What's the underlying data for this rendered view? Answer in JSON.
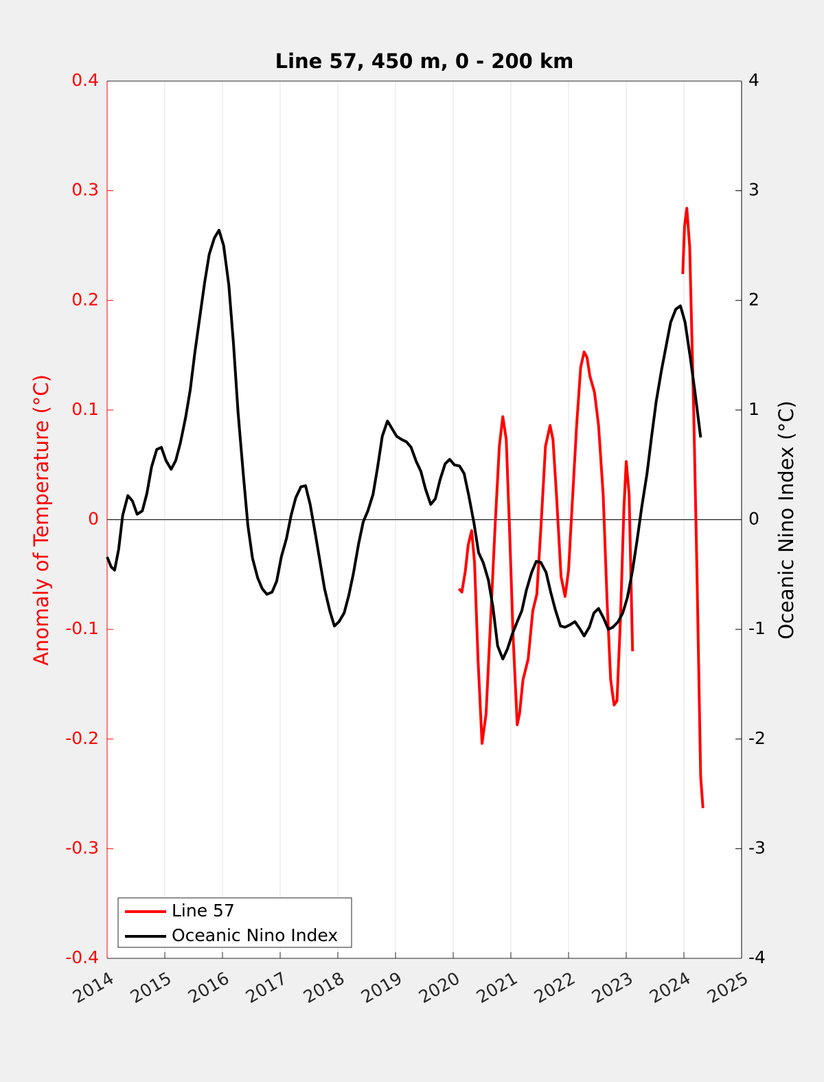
{
  "chart_data": {
    "type": "line",
    "title": "Line 57, 450 m, 0 - 200 km",
    "y_label": "Anomaly of Temperature (°C)",
    "y2_label": "Oceanic Nino Index (°C)",
    "xlim": [
      2014,
      2025
    ],
    "xticks": [
      2014,
      2015,
      2016,
      2017,
      2018,
      2019,
      2020,
      2021,
      2022,
      2023,
      2024,
      2025
    ],
    "ylim": [
      -0.4,
      0.4
    ],
    "yticks": [
      -0.4,
      -0.3,
      -0.2,
      -0.1,
      0,
      0.1,
      0.2,
      0.3,
      0.4
    ],
    "y2lim": [
      -4,
      4
    ],
    "y2ticks": [
      -4,
      -3,
      -2,
      -1,
      0,
      1,
      2,
      3,
      4
    ],
    "grid": "x",
    "legend": "lower left",
    "series": [
      {
        "name": "Line 57",
        "color": "#ff0000",
        "x": [
          2020.1,
          2020.15,
          2020.21,
          2020.26,
          2020.32,
          2020.37,
          2020.43,
          2020.5,
          2020.57,
          2020.65,
          2020.73,
          2020.8,
          2020.86,
          2020.92,
          2020.98,
          2021.04,
          2021.11,
          2021.15,
          2021.21,
          2021.3,
          2021.38,
          2021.45,
          2021.52,
          2021.6,
          2021.68,
          2021.73,
          2021.79,
          2021.87,
          2021.94,
          2022.0,
          2022.06,
          2022.14,
          2022.21,
          2022.27,
          2022.32,
          2022.37,
          2022.45,
          2022.52,
          2022.6,
          2022.67,
          2022.73,
          2022.79,
          2022.84,
          2022.9,
          2022.96,
          2023.0,
          2023.05,
          2023.11,
          null,
          2023.98,
          2024.01,
          2024.05,
          2024.1,
          2024.17,
          2024.23,
          2024.29,
          2024.33
        ],
        "values": [
          -0.063,
          -0.066,
          -0.047,
          -0.023,
          -0.01,
          -0.039,
          -0.127,
          -0.204,
          -0.177,
          -0.09,
          -0.002,
          0.067,
          0.094,
          0.073,
          -0.014,
          -0.108,
          -0.187,
          -0.177,
          -0.146,
          -0.127,
          -0.083,
          -0.068,
          -0.008,
          0.067,
          0.086,
          0.073,
          0.023,
          -0.052,
          -0.07,
          -0.046,
          0.011,
          0.086,
          0.139,
          0.153,
          0.148,
          0.131,
          0.116,
          0.086,
          0.023,
          -0.077,
          -0.146,
          -0.169,
          -0.165,
          -0.09,
          0.011,
          0.053,
          0.023,
          -0.12,
          null,
          0.224,
          0.267,
          0.284,
          0.249,
          0.098,
          -0.058,
          -0.234,
          -0.263
        ]
      },
      {
        "name": "Oceanic Nino Index",
        "color": "#000000",
        "axis": "y2",
        "x": [
          2014.0,
          2014.07,
          2014.13,
          2014.2,
          2014.27,
          2014.36,
          2014.44,
          2014.52,
          2014.61,
          2014.69,
          2014.77,
          2014.86,
          2014.94,
          2015.02,
          2015.11,
          2015.19,
          2015.27,
          2015.36,
          2015.44,
          2015.52,
          2015.61,
          2015.69,
          2015.77,
          2015.86,
          2015.94,
          2016.02,
          2016.11,
          2016.19,
          2016.27,
          2016.36,
          2016.44,
          2016.52,
          2016.61,
          2016.69,
          2016.77,
          2016.86,
          2016.94,
          2017.02,
          2017.11,
          2017.19,
          2017.27,
          2017.36,
          2017.44,
          2017.52,
          2017.61,
          2017.69,
          2017.77,
          2017.86,
          2017.94,
          2018.02,
          2018.11,
          2018.19,
          2018.27,
          2018.36,
          2018.44,
          2018.52,
          2018.61,
          2018.69,
          2018.77,
          2018.86,
          2018.94,
          2019.02,
          2019.11,
          2019.19,
          2019.27,
          2019.36,
          2019.44,
          2019.52,
          2019.61,
          2019.69,
          2019.77,
          2019.86,
          2019.94,
          2020.02,
          2020.11,
          2020.19,
          2020.27,
          2020.36,
          2020.44,
          2020.52,
          2020.61,
          2020.69,
          2020.77,
          2020.86,
          2020.94,
          2021.02,
          2021.11,
          2021.19,
          2021.27,
          2021.36,
          2021.44,
          2021.52,
          2021.61,
          2021.69,
          2021.77,
          2021.86,
          2021.94,
          2022.02,
          2022.11,
          2022.19,
          2022.27,
          2022.36,
          2022.44,
          2022.52,
          2022.61,
          2022.69,
          2022.77,
          2022.86,
          2022.94,
          2023.02,
          2023.11,
          2023.19,
          2023.27,
          2023.36,
          2023.44,
          2023.52,
          2023.61,
          2023.69,
          2023.77,
          2023.86,
          2023.94,
          2024.02,
          2024.11,
          2024.19,
          2024.29
        ],
        "values": [
          -0.34,
          -0.43,
          -0.46,
          -0.27,
          0.04,
          0.22,
          0.17,
          0.05,
          0.08,
          0.24,
          0.48,
          0.64,
          0.66,
          0.54,
          0.46,
          0.54,
          0.7,
          0.93,
          1.18,
          1.52,
          1.86,
          2.16,
          2.42,
          2.57,
          2.64,
          2.5,
          2.14,
          1.61,
          0.98,
          0.42,
          -0.05,
          -0.35,
          -0.53,
          -0.63,
          -0.68,
          -0.66,
          -0.56,
          -0.34,
          -0.17,
          0.04,
          0.2,
          0.3,
          0.31,
          0.14,
          -0.13,
          -0.38,
          -0.63,
          -0.83,
          -0.97,
          -0.93,
          -0.85,
          -0.69,
          -0.49,
          -0.22,
          -0.02,
          0.08,
          0.23,
          0.48,
          0.76,
          0.9,
          0.83,
          0.76,
          0.73,
          0.71,
          0.66,
          0.53,
          0.44,
          0.28,
          0.14,
          0.19,
          0.36,
          0.51,
          0.55,
          0.5,
          0.49,
          0.42,
          0.22,
          -0.03,
          -0.3,
          -0.39,
          -0.55,
          -0.8,
          -1.15,
          -1.27,
          -1.18,
          -1.05,
          -0.93,
          -0.83,
          -0.64,
          -0.48,
          -0.38,
          -0.39,
          -0.48,
          -0.66,
          -0.82,
          -0.97,
          -0.98,
          -0.96,
          -0.93,
          -0.99,
          -1.06,
          -0.98,
          -0.85,
          -0.81,
          -0.9,
          -1.0,
          -0.98,
          -0.93,
          -0.85,
          -0.71,
          -0.46,
          -0.18,
          0.12,
          0.42,
          0.76,
          1.08,
          1.36,
          1.58,
          1.8,
          1.92,
          1.95,
          1.8,
          1.48,
          1.17,
          0.75
        ]
      }
    ]
  }
}
